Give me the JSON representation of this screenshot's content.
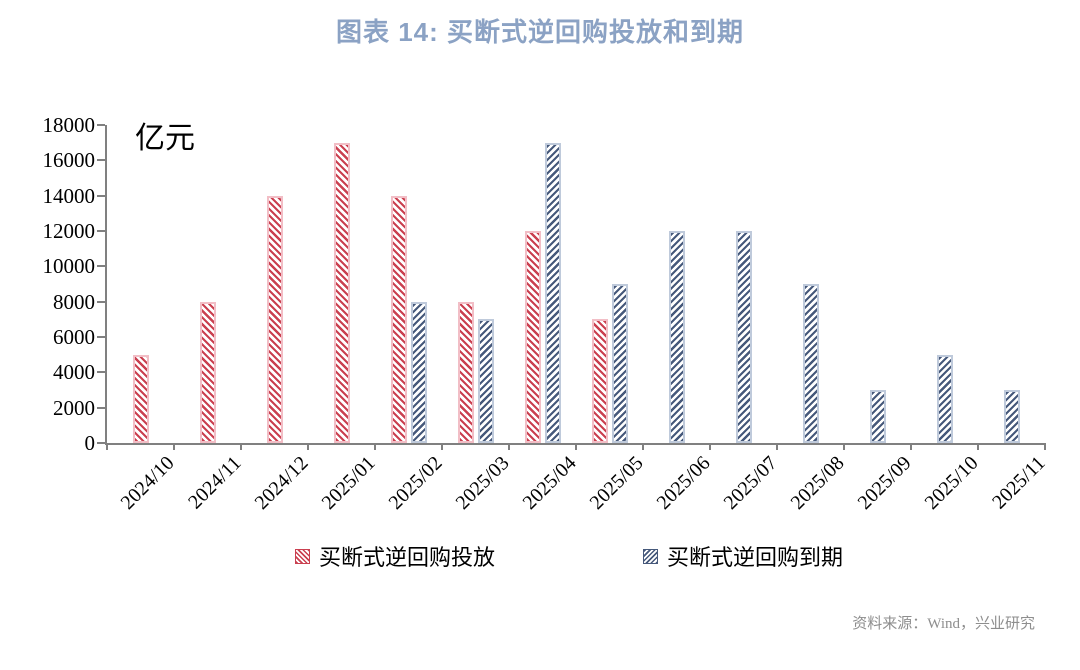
{
  "source": "资料来源：Wind，兴业研究",
  "colors": {
    "title": "#8BA2C4",
    "axis": "#808080",
    "tick_text": "#000000",
    "source_text": "#8E8E8E",
    "background": "#FFFFFF"
  },
  "chart_data": {
    "type": "bar",
    "title": "图表 14: 买断式逆回购投放和到期",
    "unit_label": "亿元",
    "categories": [
      "2024/10",
      "2024/11",
      "2024/12",
      "2025/01",
      "2025/02",
      "2025/03",
      "2025/04",
      "2025/05",
      "2025/06",
      "2025/07",
      "2025/08",
      "2025/09",
      "2025/10",
      "2025/11"
    ],
    "series": [
      {
        "name": "买断式逆回购投放",
        "color": "#CA4050",
        "border_color": "#F2BEC6",
        "hatch_direction": "\\",
        "values": [
          5000,
          8000,
          14000,
          17000,
          14000,
          8000,
          12000,
          7000,
          null,
          null,
          null,
          null,
          null,
          null
        ]
      },
      {
        "name": "买断式逆回购到期",
        "color": "#46597B",
        "border_color": "#BFCADB",
        "hatch_direction": "/",
        "values": [
          null,
          null,
          null,
          null,
          8000,
          7000,
          17000,
          9000,
          12000,
          12000,
          9000,
          3000,
          5000,
          3000
        ]
      }
    ],
    "ylim": [
      0,
      18000
    ],
    "yticks": [
      0,
      2000,
      4000,
      6000,
      8000,
      10000,
      12000,
      14000,
      16000,
      18000
    ],
    "grid": false,
    "legend_position": "bottom"
  }
}
